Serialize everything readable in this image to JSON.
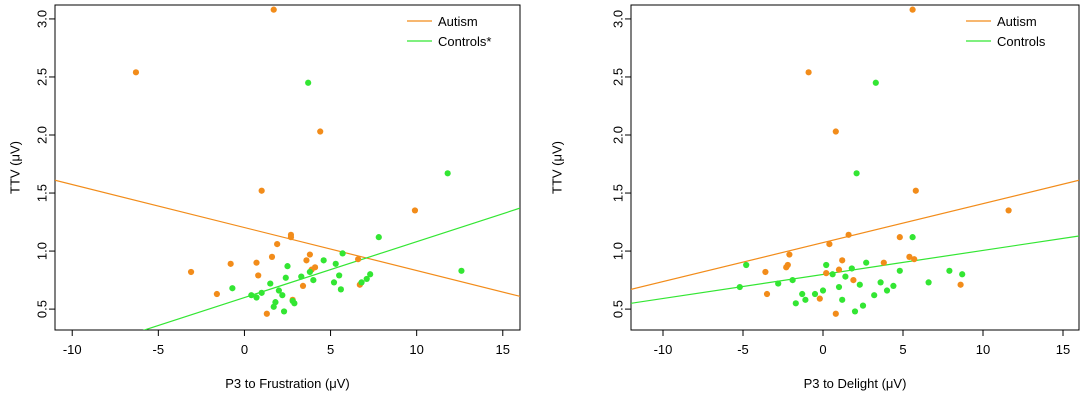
{
  "colors": {
    "autism": "#f28c1a",
    "controls": "#33e633"
  },
  "chart_data": [
    {
      "type": "scatter",
      "xlabel": "P3 to Frustration (μV)",
      "ylabel": "TTV (μV)",
      "xlim": [
        -11,
        16
      ],
      "ylim": [
        0.32,
        3.12
      ],
      "xticks": [
        -10,
        -5,
        0,
        5,
        10,
        15
      ],
      "yticks": [
        0.5,
        1.0,
        1.5,
        2.0,
        2.5,
        3.0
      ],
      "ytick_labels": [
        "0.5",
        "1.0",
        "1.5",
        "2.0",
        "2.5",
        "3.0"
      ],
      "legend": {
        "position": "top-right",
        "entries": [
          "Autism",
          "Controls*"
        ]
      },
      "series": [
        {
          "name": "Autism",
          "color": "#f28c1a",
          "points": [
            [
              -6.3,
              2.54
            ],
            [
              1.7,
              3.08
            ],
            [
              4.4,
              2.03
            ],
            [
              1.0,
              1.52
            ],
            [
              9.9,
              1.35
            ],
            [
              2.7,
              1.14
            ],
            [
              2.7,
              1.12
            ],
            [
              1.9,
              1.06
            ],
            [
              -3.1,
              0.82
            ],
            [
              -0.8,
              0.89
            ],
            [
              0.7,
              0.9
            ],
            [
              3.8,
              0.97
            ],
            [
              3.6,
              0.92
            ],
            [
              4.1,
              0.86
            ],
            [
              3.9,
              0.84
            ],
            [
              6.6,
              0.93
            ],
            [
              0.8,
              0.79
            ],
            [
              -1.6,
              0.63
            ],
            [
              2.8,
              0.58
            ],
            [
              1.3,
              0.46
            ],
            [
              6.7,
              0.71
            ],
            [
              3.4,
              0.7
            ],
            [
              1.6,
              0.95
            ]
          ]
        },
        {
          "name": "Controls*",
          "color": "#33e633",
          "points": [
            [
              3.7,
              2.45
            ],
            [
              11.8,
              1.67
            ],
            [
              7.8,
              1.12
            ],
            [
              5.7,
              0.98
            ],
            [
              12.6,
              0.83
            ],
            [
              4.6,
              0.92
            ],
            [
              5.3,
              0.89
            ],
            [
              -0.7,
              0.68
            ],
            [
              0.4,
              0.62
            ],
            [
              1.0,
              0.64
            ],
            [
              0.7,
              0.6
            ],
            [
              1.5,
              0.72
            ],
            [
              2.2,
              0.62
            ],
            [
              2.4,
              0.77
            ],
            [
              2.5,
              0.87
            ],
            [
              1.8,
              0.56
            ],
            [
              1.7,
              0.52
            ],
            [
              2.3,
              0.48
            ],
            [
              2.9,
              0.55
            ],
            [
              3.3,
              0.78
            ],
            [
              3.8,
              0.82
            ],
            [
              4.0,
              0.75
            ],
            [
              5.2,
              0.73
            ],
            [
              5.5,
              0.79
            ],
            [
              6.8,
              0.73
            ],
            [
              7.1,
              0.76
            ],
            [
              7.3,
              0.8
            ],
            [
              5.6,
              0.67
            ],
            [
              2.8,
              0.57
            ],
            [
              2.0,
              0.66
            ]
          ]
        }
      ],
      "fit_lines": [
        {
          "name": "Autism",
          "color": "#f28c1a",
          "from": [
            -11,
            1.61
          ],
          "to": [
            16,
            0.61
          ]
        },
        {
          "name": "Controls*",
          "color": "#33e633",
          "from": [
            -11,
            0.07
          ],
          "to": [
            16,
            1.37
          ]
        }
      ]
    },
    {
      "type": "scatter",
      "xlabel": "P3 to Delight (μV)",
      "ylabel": "TTV (μV)",
      "xlim": [
        -12,
        16
      ],
      "ylim": [
        0.32,
        3.12
      ],
      "xticks": [
        -10,
        -5,
        0,
        5,
        10,
        15
      ],
      "yticks": [
        0.5,
        1.0,
        1.5,
        2.0,
        2.5,
        3.0
      ],
      "ytick_labels": [
        "0.5",
        "1.0",
        "1.5",
        "2.0",
        "2.5",
        "3.0"
      ],
      "legend": {
        "position": "top-right",
        "entries": [
          "Autism",
          "Controls"
        ]
      },
      "series": [
        {
          "name": "Autism",
          "color": "#f28c1a",
          "points": [
            [
              5.6,
              3.08
            ],
            [
              -0.9,
              2.54
            ],
            [
              0.8,
              2.03
            ],
            [
              5.8,
              1.52
            ],
            [
              11.6,
              1.35
            ],
            [
              1.6,
              1.14
            ],
            [
              4.8,
              1.12
            ],
            [
              0.4,
              1.06
            ],
            [
              -2.1,
              0.97
            ],
            [
              -2.2,
              0.88
            ],
            [
              -2.3,
              0.86
            ],
            [
              -3.6,
              0.82
            ],
            [
              1.2,
              0.92
            ],
            [
              1.0,
              0.84
            ],
            [
              3.8,
              0.9
            ],
            [
              5.4,
              0.95
            ],
            [
              5.7,
              0.93
            ],
            [
              0.2,
              0.81
            ],
            [
              -3.5,
              0.63
            ],
            [
              8.6,
              0.71
            ],
            [
              0.8,
              0.46
            ],
            [
              -0.2,
              0.59
            ],
            [
              1.9,
              0.75
            ]
          ]
        },
        {
          "name": "Controls",
          "color": "#33e633",
          "points": [
            [
              3.3,
              2.45
            ],
            [
              2.1,
              1.67
            ],
            [
              5.6,
              1.12
            ],
            [
              -4.8,
              0.88
            ],
            [
              -5.2,
              0.69
            ],
            [
              -2.8,
              0.72
            ],
            [
              -1.9,
              0.75
            ],
            [
              -1.7,
              0.55
            ],
            [
              -1.3,
              0.63
            ],
            [
              -1.1,
              0.58
            ],
            [
              -0.5,
              0.63
            ],
            [
              0.0,
              0.66
            ],
            [
              0.2,
              0.88
            ],
            [
              0.6,
              0.8
            ],
            [
              1.4,
              0.78
            ],
            [
              1.8,
              0.85
            ],
            [
              1.2,
              0.58
            ],
            [
              2.0,
              0.48
            ],
            [
              2.5,
              0.53
            ],
            [
              2.7,
              0.9
            ],
            [
              3.2,
              0.62
            ],
            [
              3.6,
              0.73
            ],
            [
              4.0,
              0.66
            ],
            [
              4.4,
              0.7
            ],
            [
              4.8,
              0.83
            ],
            [
              6.6,
              0.73
            ],
            [
              7.9,
              0.83
            ],
            [
              8.7,
              0.8
            ],
            [
              2.3,
              0.71
            ],
            [
              1.0,
              0.69
            ]
          ]
        }
      ],
      "fit_lines": [
        {
          "name": "Autism",
          "color": "#f28c1a",
          "from": [
            -12,
            0.67
          ],
          "to": [
            16,
            1.61
          ]
        },
        {
          "name": "Controls",
          "color": "#33e633",
          "from": [
            -12,
            0.55
          ],
          "to": [
            16,
            1.13
          ]
        }
      ]
    }
  ]
}
